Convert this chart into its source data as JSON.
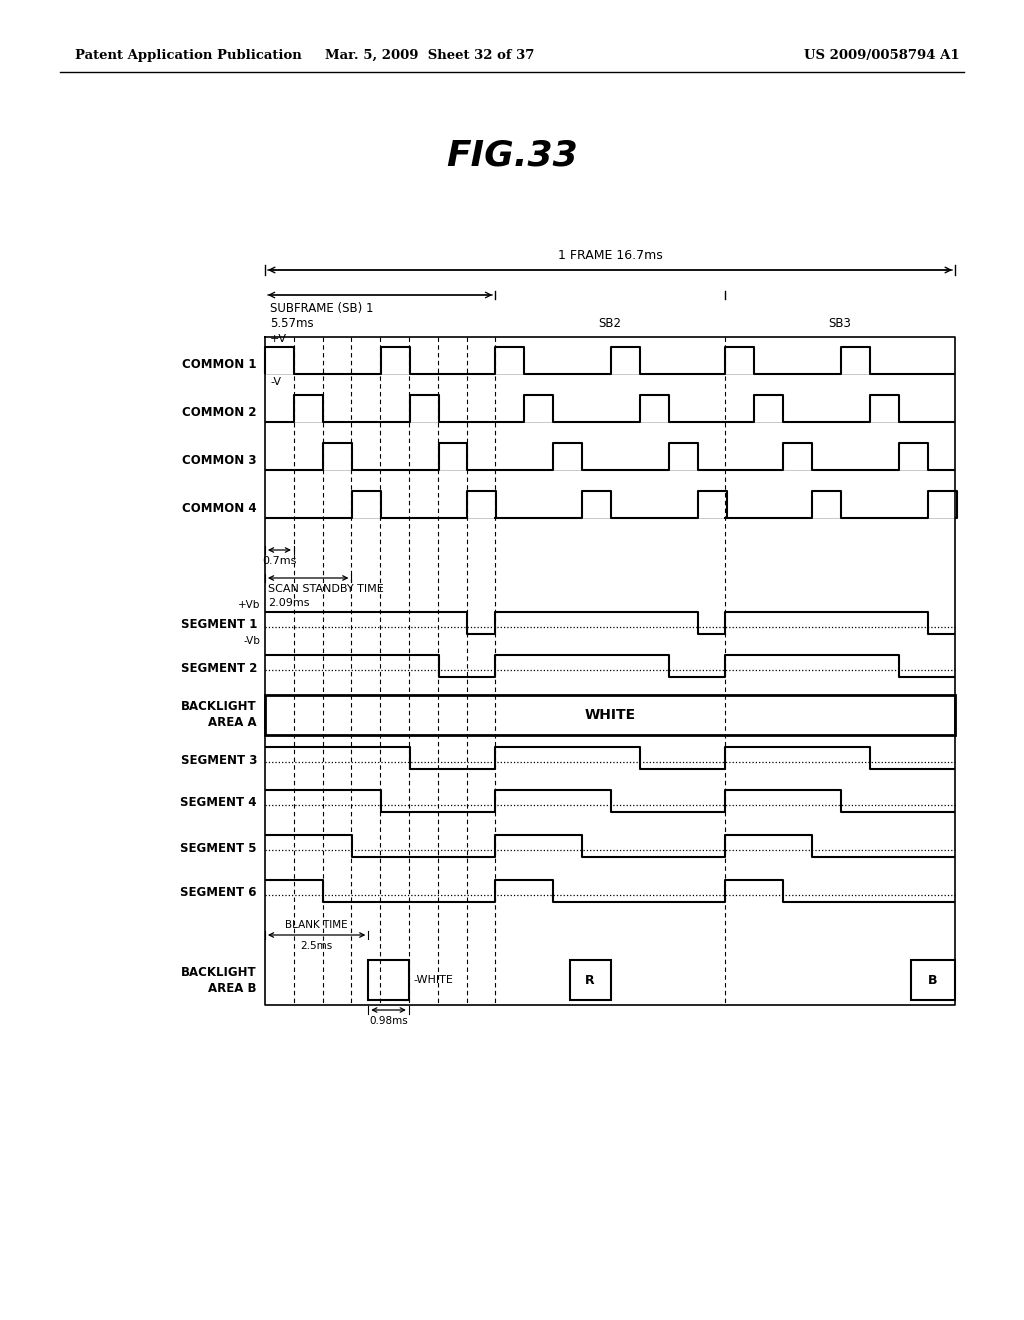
{
  "title": "FIG.33",
  "header_left": "Patent Application Publication",
  "header_mid": "Mar. 5, 2009  Sheet 32 of 37",
  "header_right": "US 2009/0058794 A1",
  "bg_color": "#ffffff",
  "frame_label": "1 FRAME 16.7ms",
  "sb1_label": "SUBFRAME (SB) 1",
  "sb1_time": "5.57ms",
  "sb2_label": "SB2",
  "sb3_label": "SB3",
  "scan_standby_label": "SCAN STANDBY TIME",
  "scan_standby_time": "2.09ms",
  "small_time_07": "0.7ms",
  "blank_time_label": "BLANK TIME",
  "blank_time_val": "2.5ms",
  "small_time_098": "0.98ms",
  "white_label": "WHITE",
  "white_label2": "WHITE",
  "R_label": "R",
  "B_label": "B",
  "vplus_label": "+V",
  "vminus_label": "-V",
  "vplusb_label": "+Vb",
  "vminusb_label": "-Vb",
  "T_frame": 16.7,
  "T_sb": 5.57,
  "T_pulse": 0.7,
  "T_standby": 2.09,
  "T_blank": 2.5,
  "T_white_pulse": 0.98
}
